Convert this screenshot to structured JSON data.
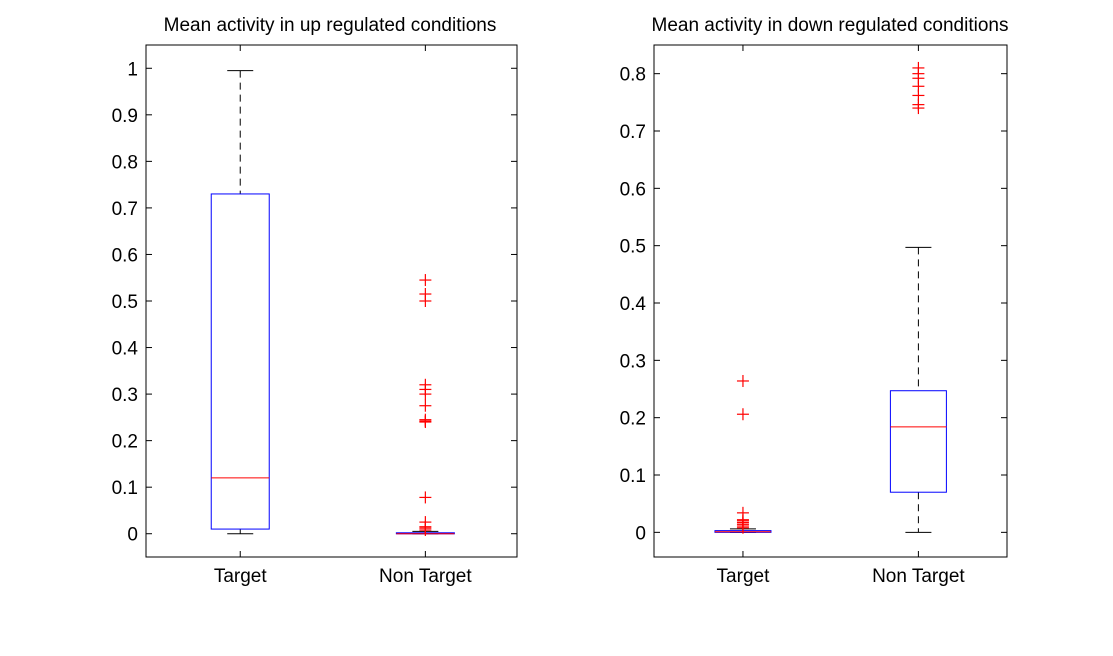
{
  "chart_data": [
    {
      "type": "box",
      "title": "Mean activity in up regulated conditions",
      "xlabel": "",
      "ylabel": "",
      "categories": [
        "Target",
        "Non Target"
      ],
      "ylim": [
        -0.05,
        1.05
      ],
      "yticks": [
        0,
        0.1,
        0.2,
        0.3,
        0.4,
        0.5,
        0.6,
        0.7,
        0.8,
        0.9,
        1
      ],
      "ytick_labels": [
        "0",
        "0.1",
        "0.2",
        "0.3",
        "0.4",
        "0.5",
        "0.6",
        "0.7",
        "0.8",
        "0.9",
        "1"
      ],
      "grid": false,
      "boxes": [
        {
          "category": "Target",
          "whisker_low": 0.0,
          "q1": 0.01,
          "median": 0.12,
          "q3": 0.73,
          "whisker_high": 0.995,
          "outliers": []
        },
        {
          "category": "Non Target",
          "whisker_low": 0.0,
          "q1": 0.0,
          "median": 0.0,
          "q3": 0.002,
          "whisker_high": 0.005,
          "outliers": [
            0.008,
            0.012,
            0.015,
            0.025,
            0.078,
            0.24,
            0.242,
            0.245,
            0.275,
            0.3,
            0.31,
            0.32,
            0.5,
            0.515,
            0.545
          ]
        }
      ],
      "colors": {
        "box": "#0000ff",
        "median": "#ff0000",
        "whisker": "#000000",
        "outlier": "#ff0000"
      }
    },
    {
      "type": "box",
      "title": "Mean activity in down regulated conditions",
      "xlabel": "",
      "ylabel": "",
      "categories": [
        "Target",
        "Non Target"
      ],
      "ylim": [
        -0.043,
        0.85
      ],
      "yticks": [
        0,
        0.1,
        0.2,
        0.3,
        0.4,
        0.5,
        0.6,
        0.7,
        0.8
      ],
      "ytick_labels": [
        "0",
        "0.1",
        "0.2",
        "0.3",
        "0.4",
        "0.5",
        "0.6",
        "0.7",
        "0.8"
      ],
      "grid": false,
      "boxes": [
        {
          "category": "Target",
          "whisker_low": 0.0,
          "q1": 0.0,
          "median": 0.001,
          "q3": 0.003,
          "whisker_high": 0.006,
          "outliers": [
            0.008,
            0.011,
            0.014,
            0.017,
            0.02,
            0.022,
            0.034,
            0.206,
            0.264
          ]
        },
        {
          "category": "Non Target",
          "whisker_low": 0.0,
          "q1": 0.07,
          "median": 0.184,
          "q3": 0.247,
          "whisker_high": 0.497,
          "outliers": [
            0.74,
            0.746,
            0.762,
            0.778,
            0.792,
            0.8,
            0.81
          ]
        }
      ],
      "colors": {
        "box": "#0000ff",
        "median": "#ff0000",
        "whisker": "#000000",
        "outlier": "#ff0000"
      }
    }
  ]
}
